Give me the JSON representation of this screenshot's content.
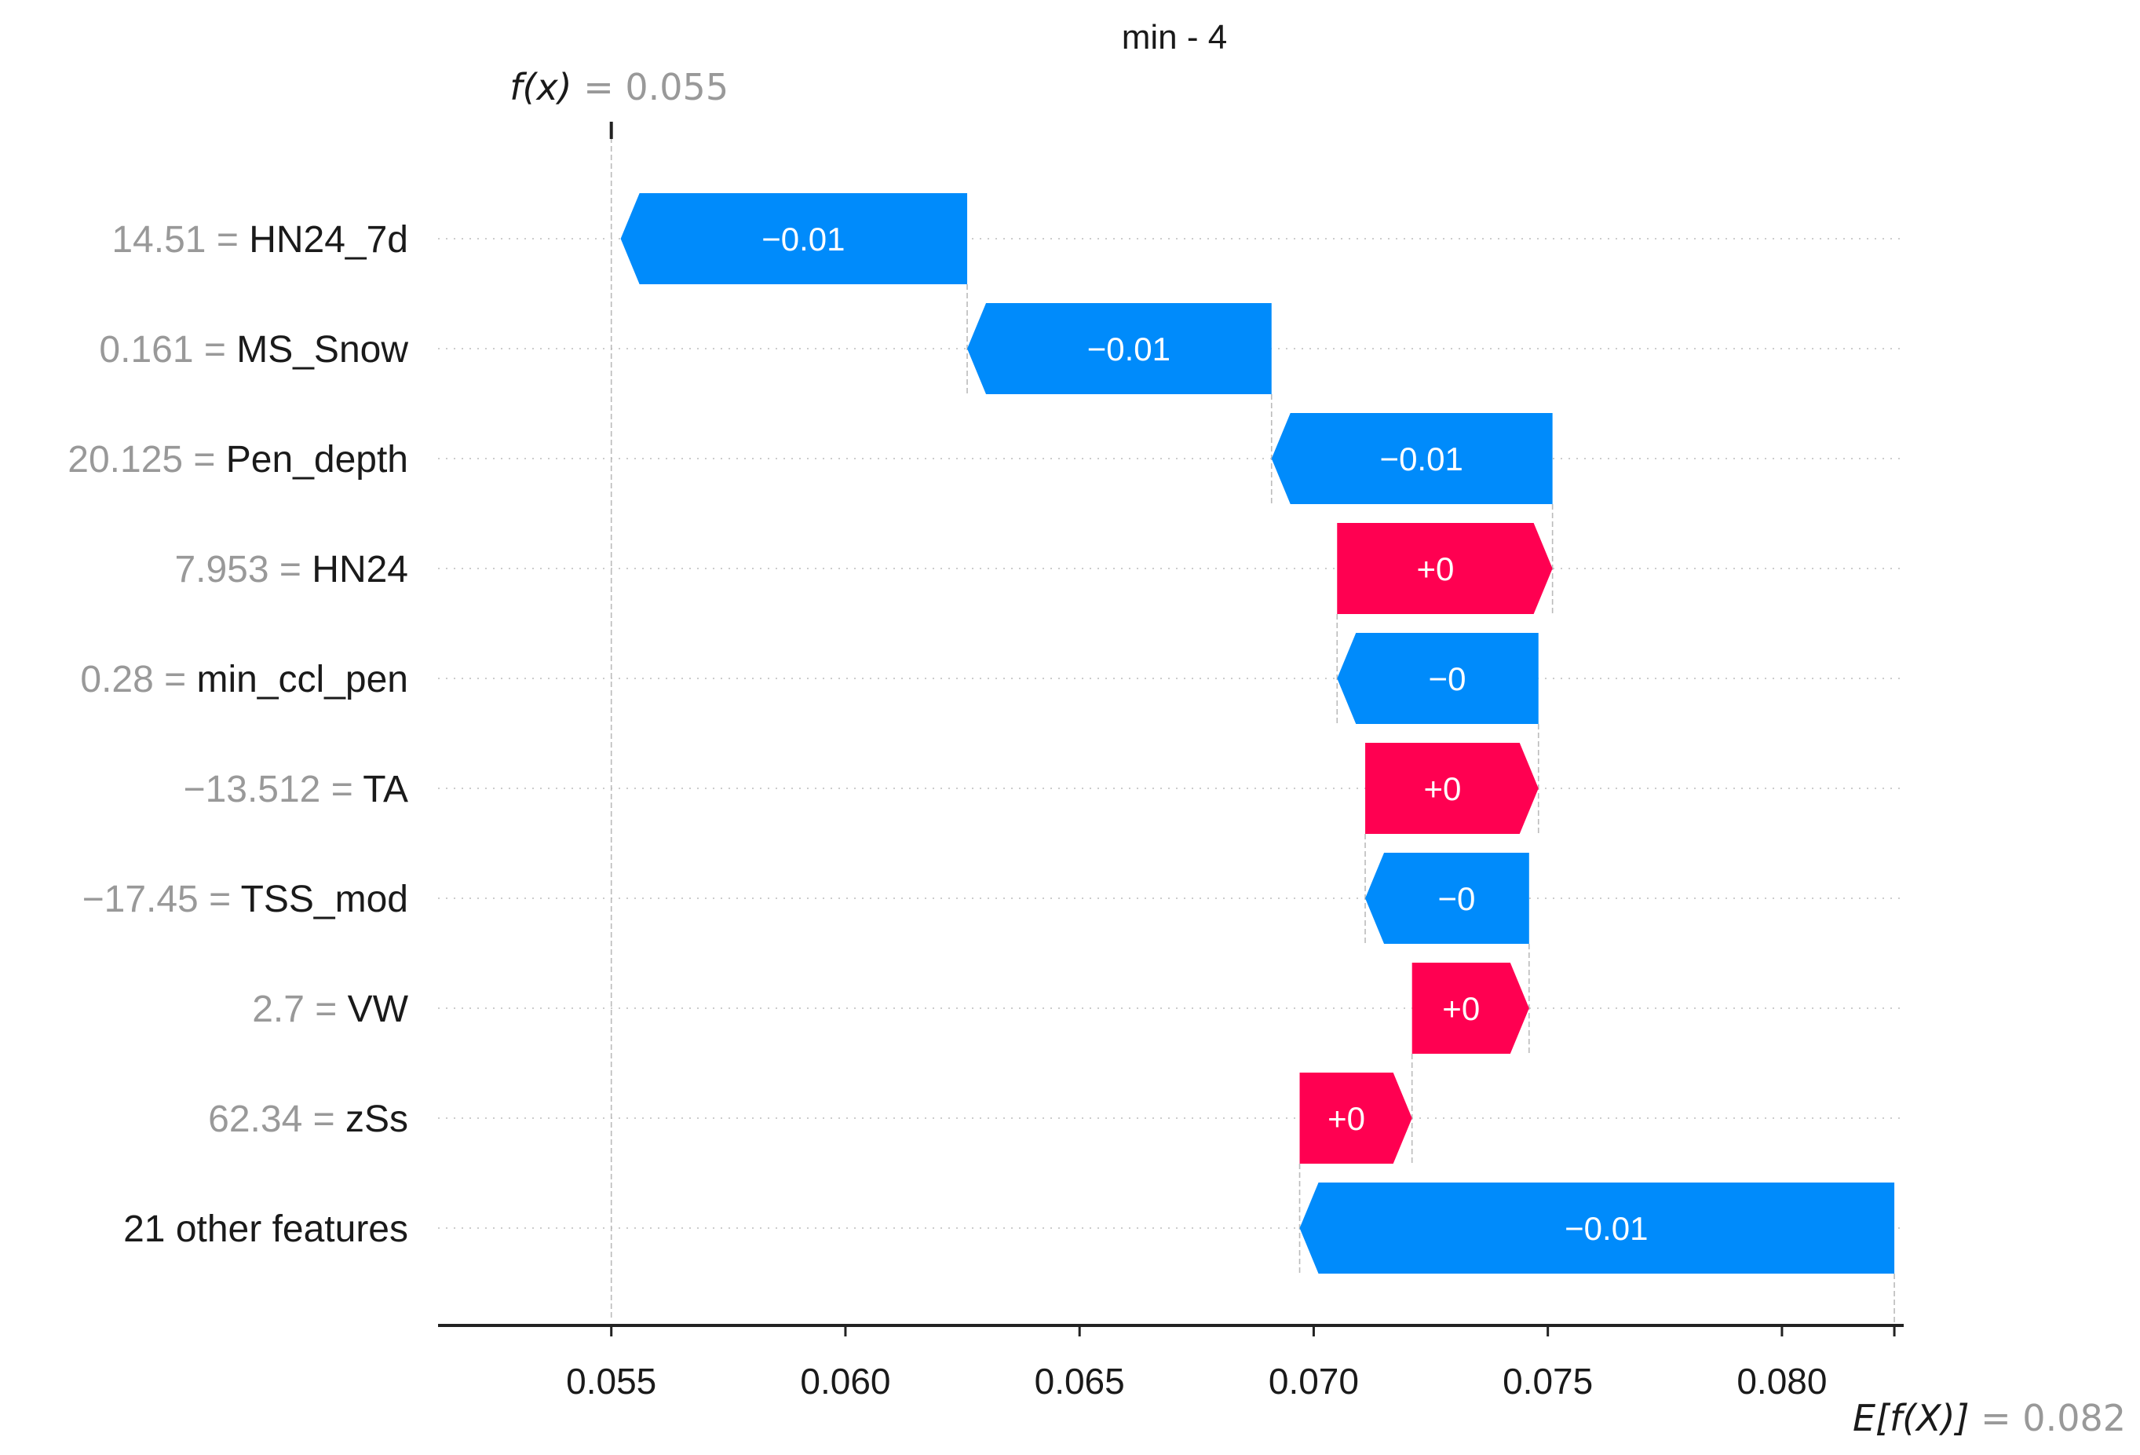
{
  "chart_data": {
    "type": "waterfall",
    "title": "min - 4",
    "base_value": 0.082,
    "output_value": 0.055,
    "fx_label": "f(x)",
    "fx_value_text": "= 0.055",
    "efx_label": "E[f(X)]",
    "efx_value_text": "= 0.082",
    "xlim": [
      0.0513,
      0.0826
    ],
    "xticks": [
      0.055,
      0.06,
      0.065,
      0.07,
      0.075,
      0.08
    ],
    "xtick_labels": [
      "0.055",
      "0.060",
      "0.065",
      "0.070",
      "0.075",
      "0.080"
    ],
    "features": [
      {
        "value": "14.51",
        "name": "HN24_7d",
        "start": 0.0626,
        "end": 0.0552,
        "label": "−0.01"
      },
      {
        "value": "0.161",
        "name": "MS_Snow",
        "start": 0.0691,
        "end": 0.0626,
        "label": "−0.01"
      },
      {
        "value": "20.125",
        "name": "Pen_depth",
        "start": 0.0751,
        "end": 0.0691,
        "label": "−0.01"
      },
      {
        "value": "7.953",
        "name": "HN24",
        "start": 0.0705,
        "end": 0.0751,
        "label": "+0"
      },
      {
        "value": "0.28",
        "name": "min_ccl_pen",
        "start": 0.0748,
        "end": 0.0705,
        "label": "−0"
      },
      {
        "value": "−13.512",
        "name": "TA",
        "start": 0.0711,
        "end": 0.0748,
        "label": "+0"
      },
      {
        "value": "−17.45",
        "name": "TSS_mod",
        "start": 0.0746,
        "end": 0.0711,
        "label": "−0"
      },
      {
        "value": "2.7",
        "name": "VW",
        "start": 0.0721,
        "end": 0.0746,
        "label": "+0"
      },
      {
        "value": "62.34",
        "name": "zSs",
        "start": 0.0697,
        "end": 0.0721,
        "label": "+0"
      },
      {
        "value": "",
        "name": "21 other features",
        "start": 0.0824,
        "end": 0.0697,
        "label": "−0.01"
      }
    ],
    "colors": {
      "positive": "#ff0051",
      "negative": "#008bfb",
      "value_text": "#999999",
      "name_text": "#1a1a1a"
    }
  }
}
